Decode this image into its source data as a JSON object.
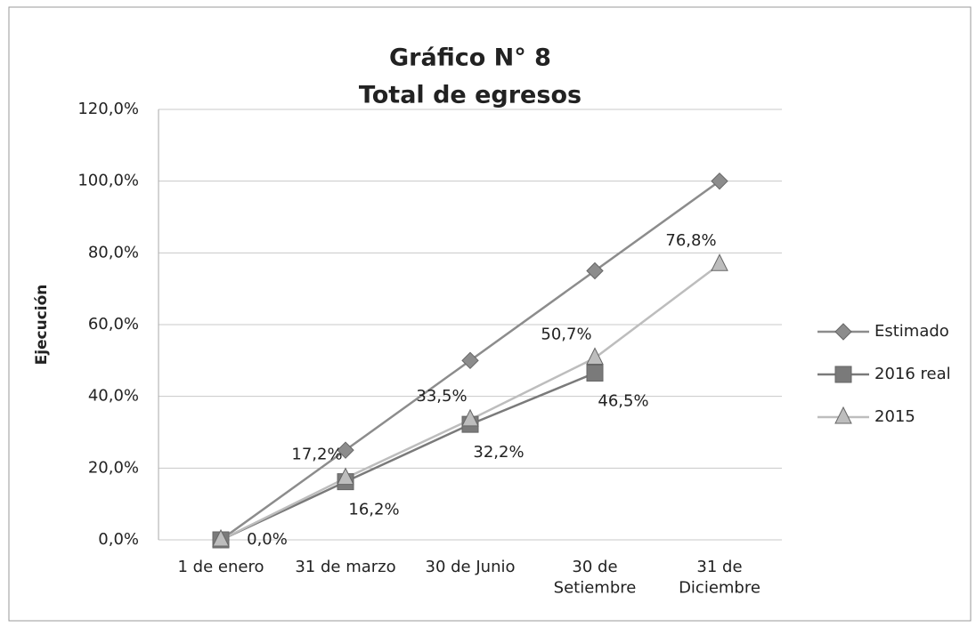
{
  "chart_data": {
    "type": "line",
    "title": "Gráfico N° 8",
    "subtitle": "Total de egresos",
    "y_label": "Ejecución",
    "categories": [
      "1 de enero",
      "31 de marzo",
      "30 de Junio",
      "30 de\nSetiembre",
      "31 de\nDiciembre"
    ],
    "series": [
      {
        "name": "Estimado",
        "color": "#8c8c8c",
        "marker": "diamond",
        "values": [
          0,
          25,
          50,
          75,
          100
        ]
      },
      {
        "name": "2016 real",
        "color": "#7a7a7a",
        "marker": "square",
        "values": [
          0,
          16.2,
          32.2,
          46.5,
          null
        ],
        "value_labels": [
          "0,0%",
          "16,2%",
          "32,2%",
          "46,5%",
          null
        ]
      },
      {
        "name": "2015",
        "color": "#bdbdbd",
        "marker": "triangle",
        "values": [
          0,
          17.2,
          33.5,
          50.7,
          76.8
        ],
        "value_labels": [
          null,
          "17,2%",
          "33,5%",
          "50,7%",
          "76,8%"
        ]
      }
    ],
    "ylim": [
      0,
      120
    ],
    "yticks": [
      {
        "value": 0,
        "label": "0,0%"
      },
      {
        "value": 20,
        "label": "20,0%"
      },
      {
        "value": 40,
        "label": "40,0%"
      },
      {
        "value": 60,
        "label": "60,0%"
      },
      {
        "value": 80,
        "label": "80,0%"
      },
      {
        "value": 100,
        "label": "100,0%"
      },
      {
        "value": 120,
        "label": "120,0%"
      }
    ],
    "grid": true,
    "legend": "right"
  }
}
